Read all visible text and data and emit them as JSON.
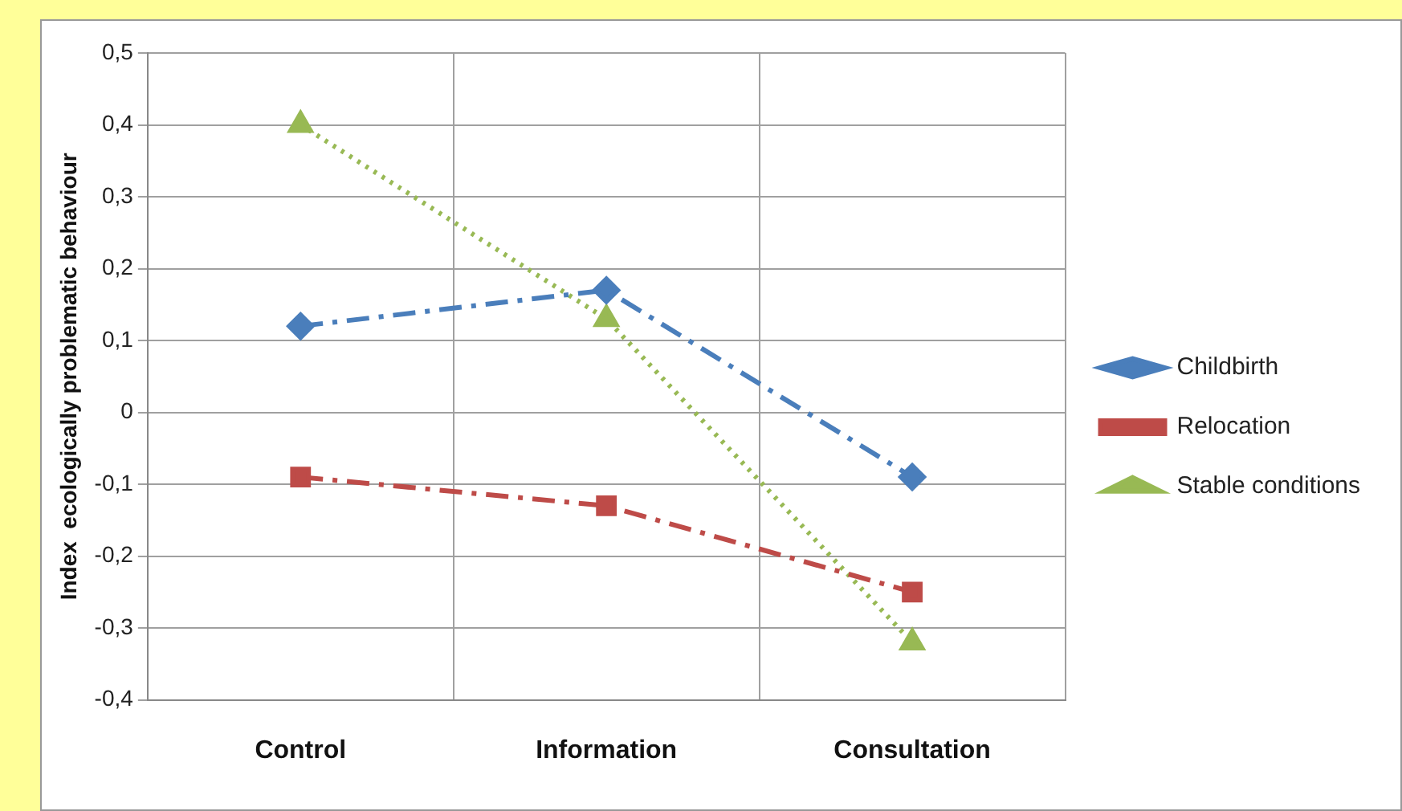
{
  "chart_data": {
    "type": "line",
    "ylabel": "Index  ecologically problematic behaviour",
    "categories": [
      "Control",
      "Information",
      "Consultation"
    ],
    "series": [
      {
        "name": "Childbirth",
        "color": "#4a7ebb",
        "values": [
          0.12,
          0.17,
          -0.09
        ],
        "marker": "diamond",
        "line_style": "dashed"
      },
      {
        "name": "Relocation",
        "color": "#be4b48",
        "values": [
          -0.09,
          -0.13,
          -0.25
        ],
        "marker": "square",
        "line_style": "dashed"
      },
      {
        "name": "Stable conditions",
        "color": "#98b954",
        "values": [
          0.4,
          0.13,
          -0.32
        ],
        "marker": "triangle",
        "line_style": "dotted"
      }
    ],
    "ylim": [
      -0.4,
      0.5
    ],
    "yticks": [
      {
        "value": 0.5,
        "label": "0,5"
      },
      {
        "value": 0.4,
        "label": "0,4"
      },
      {
        "value": 0.3,
        "label": "0,3"
      },
      {
        "value": 0.2,
        "label": "0,2"
      },
      {
        "value": 0.1,
        "label": "0,1"
      },
      0,
      {
        "value": -0.1,
        "label": "-0,1"
      },
      {
        "value": -0.2,
        "label": "-0,2"
      },
      {
        "value": -0.3,
        "label": "-0,3"
      },
      {
        "value": -0.4,
        "label": "-0,4"
      }
    ],
    "grid": true,
    "legend": "right"
  }
}
